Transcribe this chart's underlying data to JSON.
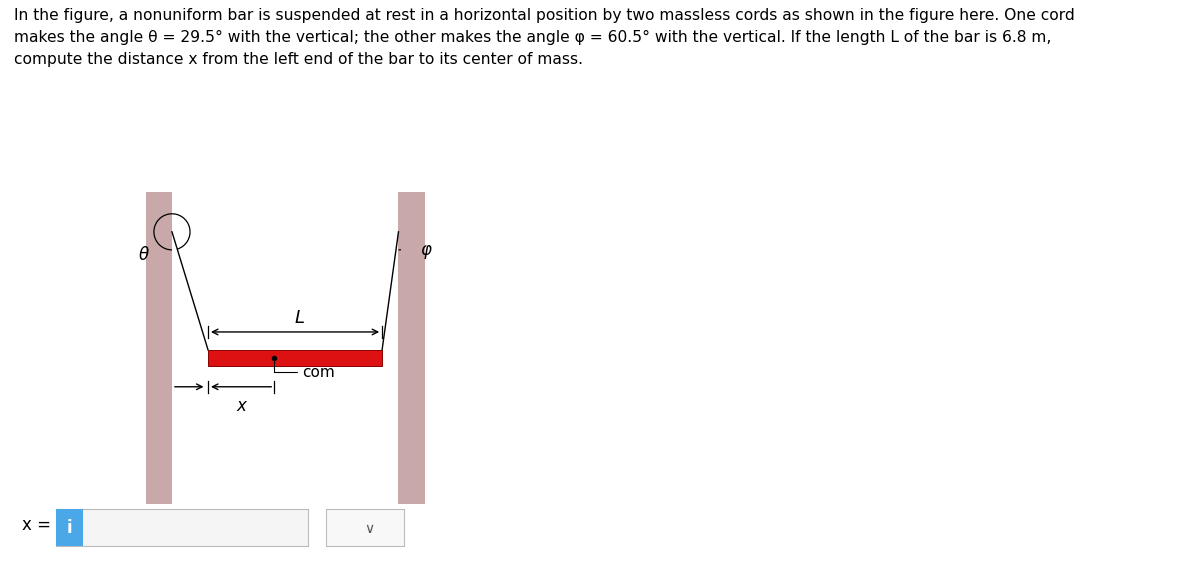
{
  "bg_color": "#ffffff",
  "wall_color": "#c8a8a8",
  "bar_color": "#dd1111",
  "bar_edge_color": "#990000",
  "text_color": "#000000",
  "title_text": "In the figure, a nonuniform bar is suspended at rest in a horizontal position by two massless cords as shown in the figure here. One cord\nmakes the angle θ = 29.5° with the vertical; the other makes the angle φ = 60.5° with the vertical. If the length L of the bar is 6.8 m,\ncompute the distance x from the left end of the bar to its center of mass.",
  "theta_deg": 29.5,
  "phi_deg": 60.5,
  "label_theta": "θ",
  "label_phi": "φ",
  "label_L": "L",
  "label_x": "x",
  "label_com": "com",
  "input_label": "x =",
  "input_icon": "i",
  "input_box_color": "#4aa8e8",
  "com_rel": 0.38
}
